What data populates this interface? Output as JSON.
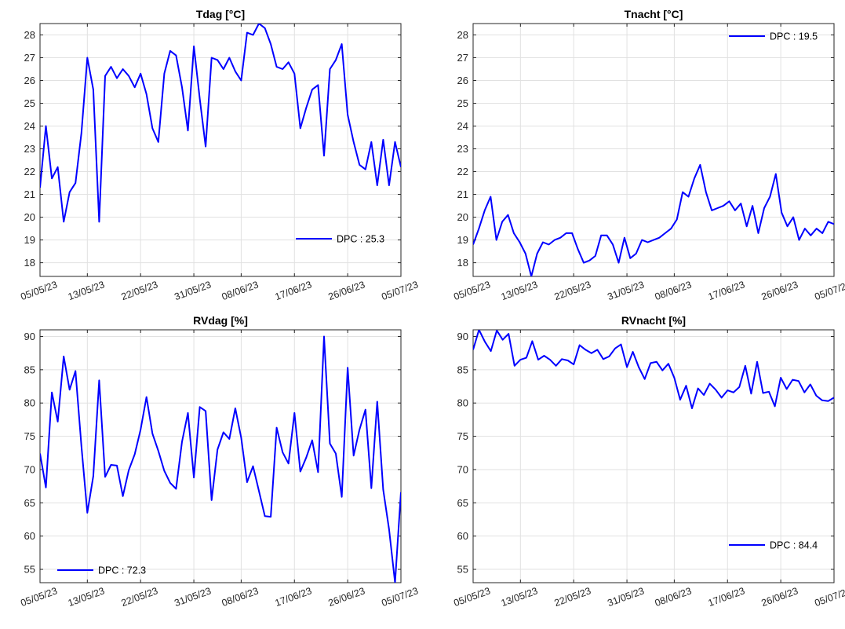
{
  "figure": {
    "line_color": "#0000ff",
    "grid_color": "#e1e1e1",
    "axis_color": "#262626",
    "x_ticks": [
      "05/05/23",
      "13/05/23",
      "22/05/23",
      "31/05/23",
      "08/06/23",
      "17/06/23",
      "26/06/23",
      "05/07/23"
    ]
  },
  "chart_data": [
    {
      "type": "line",
      "title": "Tdag [°C]",
      "xlabel": "",
      "ylabel": "",
      "xlim": [
        "05/05/23",
        "05/07/23"
      ],
      "ylim": [
        17.4,
        28.5
      ],
      "yticks": [
        18,
        19,
        20,
        21,
        22,
        23,
        24,
        25,
        26,
        27,
        28
      ],
      "grid": true,
      "legend_placement": "bottom-right",
      "legend": "DPC : 25.3",
      "series": [
        {
          "values": [
            21.3,
            24.0,
            21.7,
            22.2,
            19.8,
            21.1,
            21.5,
            23.7,
            27.0,
            25.6,
            19.8,
            26.2,
            26.6,
            26.1,
            26.5,
            26.2,
            25.7,
            26.3,
            25.4,
            23.9,
            23.3,
            26.3,
            27.3,
            27.1,
            25.7,
            23.8,
            27.5,
            25.2,
            23.1,
            27.0,
            26.9,
            26.5,
            27.0,
            26.4,
            26.0,
            28.1,
            28.0,
            28.5,
            28.3,
            27.6,
            26.6,
            26.5,
            26.8,
            26.3,
            23.9,
            24.8,
            25.6,
            25.8,
            22.7,
            26.5,
            26.9,
            27.6,
            24.5,
            23.3,
            22.3,
            22.1,
            23.3,
            21.4,
            23.4,
            21.4,
            23.3,
            22.2
          ]
        }
      ]
    },
    {
      "type": "line",
      "title": "Tnacht [°C]",
      "xlabel": "",
      "ylabel": "",
      "xlim": [
        "05/05/23",
        "05/07/23"
      ],
      "ylim": [
        17.4,
        28.5
      ],
      "yticks": [
        18,
        19,
        20,
        21,
        22,
        23,
        24,
        25,
        26,
        27,
        28
      ],
      "grid": true,
      "legend_placement": "top-right",
      "legend": "DPC : 19.5",
      "series": [
        {
          "values": [
            18.8,
            19.5,
            20.3,
            20.9,
            19.0,
            19.8,
            20.1,
            19.3,
            18.9,
            18.4,
            17.4,
            18.4,
            18.9,
            18.8,
            19.0,
            19.1,
            19.3,
            19.3,
            18.6,
            18.0,
            18.1,
            18.3,
            19.2,
            19.2,
            18.8,
            18.0,
            19.1,
            18.2,
            18.4,
            19.0,
            18.9,
            19.0,
            19.1,
            19.3,
            19.5,
            19.9,
            21.1,
            20.9,
            21.7,
            22.3,
            21.1,
            20.3,
            20.4,
            20.5,
            20.7,
            20.3,
            20.6,
            19.6,
            20.5,
            19.3,
            20.4,
            20.9,
            21.9,
            20.2,
            19.6,
            20.0,
            19.0,
            19.5,
            19.2,
            19.5,
            19.3,
            19.8,
            19.7
          ]
        }
      ]
    },
    {
      "type": "line",
      "title": "RVdag [%]",
      "xlabel": "",
      "ylabel": "",
      "xlim": [
        "05/05/23",
        "05/07/23"
      ],
      "ylim": [
        53,
        91
      ],
      "yticks": [
        55,
        60,
        65,
        70,
        75,
        80,
        85,
        90
      ],
      "grid": true,
      "legend_placement": "bottom-left",
      "legend": "DPC : 72.3",
      "series": [
        {
          "values": [
            72.4,
            67.3,
            81.6,
            77.2,
            87.0,
            82.0,
            84.8,
            73.5,
            63.5,
            69.0,
            83.4,
            68.9,
            70.7,
            70.6,
            66.0,
            69.9,
            72.3,
            76.0,
            80.9,
            75.4,
            72.8,
            69.8,
            68.0,
            67.1,
            74.2,
            78.5,
            68.8,
            79.4,
            78.8,
            65.4,
            73.0,
            75.6,
            74.6,
            79.2,
            74.8,
            68.1,
            70.5,
            66.8,
            63.0,
            62.9,
            76.3,
            72.6,
            70.9,
            78.5,
            69.7,
            71.8,
            74.4,
            69.6,
            90.0,
            73.9,
            72.4,
            65.9,
            85.3,
            72.1,
            76.0,
            79.0,
            67.2,
            80.2,
            67.0,
            61.0,
            53.0,
            66.6
          ]
        }
      ]
    },
    {
      "type": "line",
      "title": "RVnacht [%]",
      "xlabel": "",
      "ylabel": "",
      "xlim": [
        "05/05/23",
        "05/07/23"
      ],
      "ylim": [
        53,
        91
      ],
      "yticks": [
        55,
        60,
        65,
        70,
        75,
        80,
        85,
        90
      ],
      "grid": true,
      "legend_placement": "bottom-right",
      "legend": "DPC : 84.4",
      "series": [
        {
          "values": [
            88.0,
            91.0,
            89.2,
            87.8,
            90.9,
            89.5,
            90.4,
            85.6,
            86.5,
            86.8,
            89.3,
            86.5,
            87.1,
            86.5,
            85.6,
            86.6,
            86.4,
            85.8,
            88.7,
            88.0,
            87.5,
            88.0,
            86.6,
            87.0,
            88.2,
            88.8,
            85.4,
            87.7,
            85.4,
            83.6,
            86.0,
            86.2,
            84.9,
            85.9,
            83.8,
            80.5,
            82.6,
            79.2,
            82.2,
            81.2,
            82.9,
            82.0,
            80.8,
            81.9,
            81.6,
            82.4,
            85.6,
            81.4,
            86.2,
            81.5,
            81.7,
            79.5,
            83.8,
            82.1,
            83.5,
            83.3,
            81.6,
            82.8,
            81.1,
            80.4,
            80.3,
            80.8
          ]
        }
      ]
    }
  ]
}
